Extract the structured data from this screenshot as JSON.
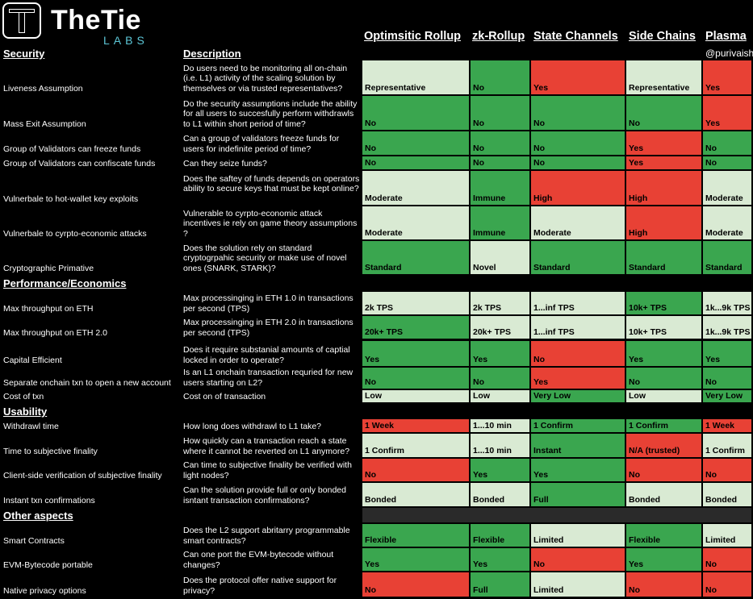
{
  "header": {
    "brand": "TheTie",
    "labs": "LABS",
    "handle": "@purivaish"
  },
  "columns": [
    "Optimsitic Rollup",
    "zk-Rollup",
    "State Channels",
    "Side Chains",
    "Plasma"
  ],
  "sections": {
    "security": "Security",
    "description": "Description",
    "performance": "Performance/Economics",
    "usability": "Usability",
    "other": "Other aspects"
  },
  "colors": {
    "green": "#3aa64f",
    "light_green": "#d9ead3",
    "red": "#e84135",
    "accent": "#5cc6d6"
  },
  "rows": [
    {
      "label": "Liveness Assumption",
      "desc": "Do users need to be monitoring all on-chain (i.e. L1) activity of the scaling solution by themselves or via trusted representatives?",
      "values": [
        "Representative",
        "No",
        "Yes",
        "Representative",
        "Yes"
      ]
    },
    {
      "label": "Mass Exit Assumption",
      "desc": "Do the security assumptions include the ability for all users to succesfully perform withdrawls to L1 within short period of time?",
      "values": [
        "No",
        "No",
        "No",
        "No",
        "Yes"
      ]
    },
    {
      "label": "Group of Validators can freeze funds",
      "desc": "Can a group of validators freeze funds for users for indefinite period of time?",
      "values": [
        "No",
        "No",
        "No",
        "Yes",
        "No"
      ]
    },
    {
      "label": "Group of Validators can confiscate funds",
      "desc": "Can they seize funds?",
      "values": [
        "No",
        "No",
        "No",
        "Yes",
        "No"
      ]
    },
    {
      "label": "Vulnerbale to hot-wallet key exploits",
      "desc": "Does the saftey of funds depends on operators ability to secure keys that must be kept online?",
      "values": [
        "Moderate",
        "Immune",
        "High",
        "High",
        "Moderate"
      ]
    },
    {
      "label": "Vulnerbale to cyrpto-economic attacks",
      "desc": "Vulnerable to cyrpto-economic attack incentives ie rely on game theory assumptions ?",
      "values": [
        "Moderate",
        "Immune",
        "Moderate",
        "High",
        "Moderate"
      ]
    },
    {
      "label": "Cryptographic Primative",
      "desc": "Does the solution rely on standard cryptogrpahic security or make use of novel ones (SNARK, STARK)?",
      "values": [
        "Standard",
        "Novel",
        "Standard",
        "Standard",
        "Standard"
      ]
    },
    {
      "label": "Max throughput on ETH",
      "desc": "Max processinging in ETH 1.0 in transactions per second (TPS)",
      "values": [
        "2k TPS",
        "2k TPS",
        "1...inf TPS",
        "10k+ TPS",
        "1k...9k TPS"
      ]
    },
    {
      "label": "Max throughput on ETH 2.0",
      "desc": "Max processinging in ETH 2.0  in transactions per second (TPS)",
      "values": [
        "20k+ TPS",
        "20k+ TPS",
        "1...inf TPS",
        "10k+ TPS",
        "1k...9k TPS"
      ]
    },
    {
      "label": "Capital Efficient",
      "desc": "Does it require substanial amounts of captial locked in order to operate?",
      "values": [
        "Yes",
        "Yes",
        "No",
        "Yes",
        "Yes"
      ]
    },
    {
      "label": "Separate onchain txn to open a new account",
      "desc": "Is an L1 onchain transaction requried for new users starting on L2?",
      "values": [
        "No",
        "No",
        "Yes",
        "No",
        "No"
      ]
    },
    {
      "label": "Cost of txn",
      "desc": "Cost on of transaction",
      "values": [
        "Low",
        "Low",
        "Very Low",
        "Low",
        "Very Low"
      ]
    },
    {
      "label": "Withdrawl time",
      "desc": "How long does withdrawl to L1 take?",
      "values": [
        "1 Week",
        "1...10 min",
        "1 Confirm",
        "1 Confirm",
        "1 Week"
      ]
    },
    {
      "label": "Time to subjective finality",
      "desc": "How quickly can a transaction reach a state where it cannot be reverted on L1 anymore?",
      "values": [
        "1 Confirm",
        "1...10 min",
        "Instant",
        "N/A (trusted)",
        "1 Confirm"
      ]
    },
    {
      "label": "Client-side verification of subjective finality",
      "desc": "Can time to subjective finality be verified with light nodes?",
      "values": [
        "No",
        "Yes",
        "Yes",
        "No",
        "No"
      ]
    },
    {
      "label": "Instant txn confirmations",
      "desc": "Can the solution provide full or only bonded isntant transaction confirmations?",
      "values": [
        "Bonded",
        "Bonded",
        "Full",
        "Bonded",
        "Bonded"
      ]
    },
    {
      "label": "Smart Contracts",
      "desc": "Does the L2 support abritarry programmable smart contracts?",
      "values": [
        "Flexible",
        "Flexible",
        "Limited",
        "Flexible",
        "Limited"
      ]
    },
    {
      "label": "EVM-Bytecode portable",
      "desc": "Can one port the EVM-bytecode without changes?",
      "values": [
        "Yes",
        "Yes",
        "No",
        "Yes",
        "No"
      ]
    },
    {
      "label": "Native privacy options",
      "desc": "Does the protocol offer native support for privacy?",
      "values": [
        "No",
        "Full",
        "Limited",
        "No",
        "No"
      ]
    }
  ]
}
